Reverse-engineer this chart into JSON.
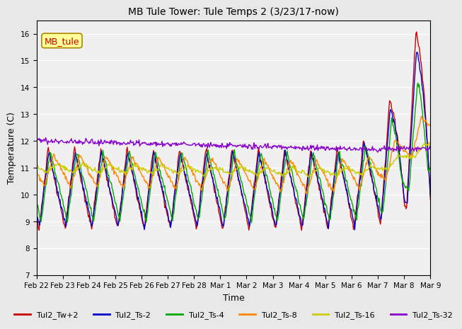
{
  "title": "MB Tule Tower: Tule Temps 2 (3/23/17-now)",
  "xlabel": "Time",
  "ylabel": "Temperature (C)",
  "ylim": [
    7.0,
    16.5
  ],
  "yticks": [
    7.0,
    8.0,
    9.0,
    10.0,
    11.0,
    12.0,
    13.0,
    14.0,
    15.0,
    16.0
  ],
  "xlim": [
    0,
    15
  ],
  "xtick_labels": [
    "Feb 22",
    "Feb 23",
    "Feb 24",
    "Feb 25",
    "Feb 26",
    "Feb 27",
    "Feb 28",
    "Mar 1",
    "Mar 2",
    "Mar 3",
    "Mar 4",
    "Mar 5",
    "Mar 6",
    "Mar 7",
    "Mar 8",
    "Mar 9"
  ],
  "xtick_positions": [
    0,
    1,
    2,
    3,
    4,
    5,
    6,
    7,
    8,
    9,
    10,
    11,
    12,
    13,
    14,
    15
  ],
  "legend_label": "MB_tule",
  "series_names": [
    "Tul2_Tw+2",
    "Tul2_Ts-2",
    "Tul2_Ts-4",
    "Tul2_Ts-8",
    "Tul2_Ts-16",
    "Tul2_Ts-32"
  ],
  "series_colors": [
    "#cc0000",
    "#0000cc",
    "#00aa00",
    "#ff8800",
    "#cccc00",
    "#8800cc"
  ],
  "bg_color": "#e8e8e8",
  "plot_bg": "#f0f0f0",
  "grid_color": "#ffffff",
  "lw": 1.0
}
